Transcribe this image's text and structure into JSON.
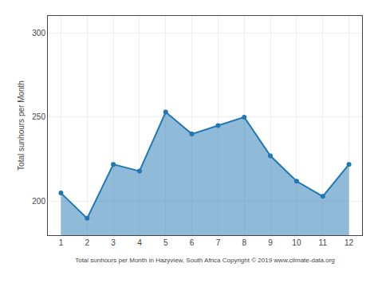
{
  "chart_data": {
    "type": "area",
    "x": [
      1,
      2,
      3,
      4,
      5,
      6,
      7,
      8,
      9,
      10,
      11,
      12
    ],
    "values": [
      205,
      190,
      222,
      218,
      253,
      240,
      245,
      250,
      227,
      212,
      203,
      222
    ],
    "xlabel": "Total sunhours per Month in Hazyview, South Africa Copyright © 2019 www.climate-data.org",
    "ylabel": "Total sunhours per Month",
    "xlim": [
      0.5,
      12.5
    ],
    "xticks": [
      1,
      2,
      3,
      4,
      5,
      6,
      7,
      8,
      9,
      10,
      11,
      12
    ],
    "ylim": [
      180,
      310
    ],
    "yticks": [
      200,
      250,
      300
    ],
    "grid": true,
    "marker": "circle"
  }
}
